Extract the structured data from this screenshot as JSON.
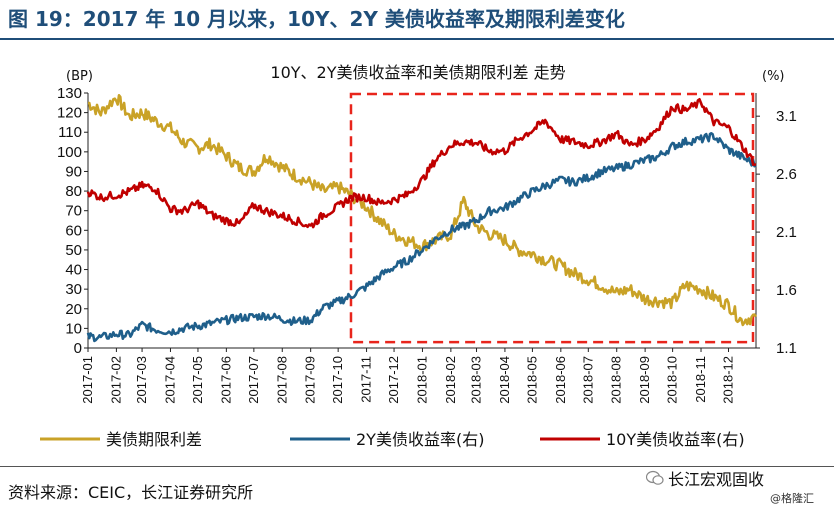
{
  "figure": {
    "title": "图 19：2017 年 10 月以来，10Y、2Y 美债收益率及期限利差变化",
    "source": "资料来源：CEIC，长江证券研究所",
    "watermark": "长江宏观固收",
    "watermark_sub": "@格隆汇"
  },
  "colors": {
    "spread": "#c9a227",
    "y2": "#1f5f8b",
    "y10": "#c00000",
    "box": "#e8251c",
    "title": "#1f4e79"
  },
  "chart_data": {
    "type": "line",
    "title": "10Y、2Y美债收益率和美债期限利差 走势",
    "ylabel_left": "(BP)",
    "ylabel_right": "(%)",
    "ylim_left": [
      0,
      130
    ],
    "yticks_left": [
      "0",
      "10",
      "20",
      "30",
      "40",
      "50",
      "60",
      "70",
      "80",
      "90",
      "100",
      "110",
      "120",
      "130"
    ],
    "ylim_right": [
      1.1,
      3.3
    ],
    "yticks_right": [
      "1.1",
      "1.6",
      "2.1",
      "2.6",
      "3.1"
    ],
    "xticks": [
      "2017-01",
      "2017-02",
      "2017-03",
      "2017-04",
      "2017-05",
      "2017-06",
      "2017-07",
      "2017-08",
      "2017-09",
      "2017-10",
      "2017-11",
      "2017-12",
      "2018-01",
      "2018-02",
      "2018-03",
      "2018-04",
      "2018-05",
      "2018-06",
      "2018-07",
      "2018-08",
      "2018-09",
      "2018-10",
      "2018-11",
      "2018-12"
    ],
    "x": [
      "2017-01-01",
      "2017-01-15",
      "2017-02-01",
      "2017-02-15",
      "2017-03-01",
      "2017-03-15",
      "2017-04-01",
      "2017-04-15",
      "2017-05-01",
      "2017-05-15",
      "2017-06-01",
      "2017-06-15",
      "2017-07-01",
      "2017-07-15",
      "2017-08-01",
      "2017-08-15",
      "2017-09-01",
      "2017-09-15",
      "2017-10-01",
      "2017-10-15",
      "2017-11-01",
      "2017-11-15",
      "2017-12-01",
      "2017-12-15",
      "2018-01-01",
      "2018-01-15",
      "2018-02-01",
      "2018-02-15",
      "2018-03-01",
      "2018-03-15",
      "2018-04-01",
      "2018-04-15",
      "2018-05-01",
      "2018-05-15",
      "2018-06-01",
      "2018-06-15",
      "2018-07-01",
      "2018-07-15",
      "2018-08-01",
      "2018-08-15",
      "2018-09-01",
      "2018-09-15",
      "2018-10-01",
      "2018-10-15",
      "2018-11-01",
      "2018-11-15",
      "2018-12-01",
      "2018-12-15",
      "2018-12-31"
    ],
    "series": [
      {
        "name": "美债期限利差",
        "axis": "left",
        "values": [
          125,
          120,
          128,
          118,
          120,
          116,
          112,
          105,
          102,
          104,
          98,
          92,
          90,
          98,
          92,
          88,
          84,
          80,
          82,
          78,
          72,
          65,
          58,
          55,
          52,
          55,
          58,
          75,
          62,
          58,
          55,
          50,
          48,
          45,
          42,
          38,
          35,
          32,
          28,
          30,
          25,
          24,
          23,
          32,
          30,
          26,
          22,
          14,
          16
        ]
      },
      {
        "name": "2Y美债收益率(右)",
        "axis": "right",
        "values": [
          1.2,
          1.19,
          1.22,
          1.21,
          1.3,
          1.26,
          1.24,
          1.27,
          1.29,
          1.31,
          1.34,
          1.36,
          1.37,
          1.38,
          1.35,
          1.33,
          1.34,
          1.45,
          1.5,
          1.55,
          1.63,
          1.72,
          1.8,
          1.85,
          1.95,
          2.04,
          2.12,
          2.15,
          2.2,
          2.28,
          2.31,
          2.38,
          2.45,
          2.5,
          2.55,
          2.53,
          2.57,
          2.62,
          2.65,
          2.68,
          2.72,
          2.75,
          2.84,
          2.88,
          2.9,
          2.93,
          2.81,
          2.75,
          2.68
        ]
      },
      {
        "name": "10Y美债收益率(右)",
        "axis": "right",
        "values": [
          2.45,
          2.4,
          2.42,
          2.45,
          2.5,
          2.48,
          2.3,
          2.28,
          2.35,
          2.25,
          2.2,
          2.17,
          2.33,
          2.28,
          2.24,
          2.2,
          2.15,
          2.25,
          2.32,
          2.4,
          2.4,
          2.35,
          2.38,
          2.42,
          2.55,
          2.72,
          2.85,
          2.88,
          2.87,
          2.8,
          2.8,
          2.9,
          2.98,
          3.06,
          2.9,
          2.88,
          2.85,
          2.88,
          2.95,
          2.85,
          2.9,
          3.0,
          3.18,
          3.15,
          3.22,
          3.05,
          3.0,
          2.85,
          2.68
        ]
      }
    ],
    "legend_position": "bottom",
    "grid": false,
    "annotation": "dashed box from 2017-10 to 2018-12"
  }
}
